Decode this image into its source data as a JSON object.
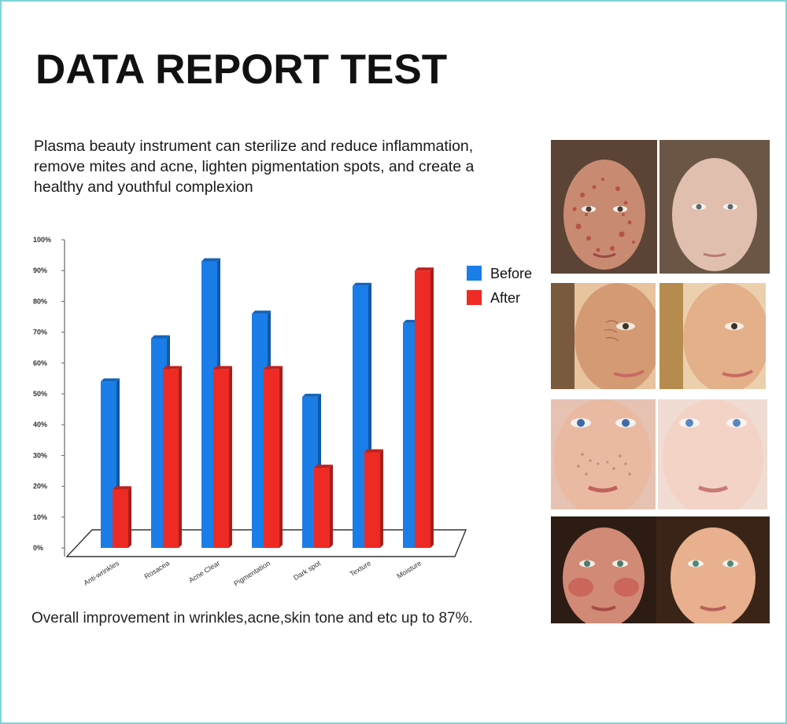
{
  "title": "DATA REPORT TEST",
  "description": "Plasma beauty instrument can sterilize and reduce inflammation, remove mites and acne, lighten pigmentation spots, and create a healthy and youthful complexion",
  "footnote": "Overall improvement in wrinkles,acne,skin tone and etc up to 87%.",
  "colors": {
    "before": "#1a7de8",
    "after": "#ee2a24",
    "frame": "#7fd3d6"
  },
  "chart_data": {
    "type": "bar",
    "categories": [
      "Anti-wrinkles",
      "Rosacea",
      "Acne Clear",
      "Pigmentation",
      "Dark spot",
      "Texture",
      "Moisture"
    ],
    "series": [
      {
        "name": "Before",
        "values": [
          54,
          68,
          93,
          76,
          49,
          85,
          73
        ]
      },
      {
        "name": "After",
        "values": [
          19,
          58,
          58,
          58,
          26,
          31,
          90
        ]
      }
    ],
    "y_ticks": [
      "0%",
      "10%",
      "20%",
      "30%",
      "40%",
      "50%",
      "60%",
      "70%",
      "80%",
      "90%",
      "100%"
    ],
    "ylim": [
      0,
      100
    ],
    "legend_position": "right",
    "grid": false
  },
  "photos": [
    {
      "before": "acne-face-before",
      "after": "acne-face-after"
    },
    {
      "before": "wrinkle-face-before",
      "after": "wrinkle-face-after"
    },
    {
      "before": "freckle-face-before",
      "after": "freckle-face-after"
    },
    {
      "before": "redness-face-before",
      "after": "redness-face-after"
    }
  ]
}
